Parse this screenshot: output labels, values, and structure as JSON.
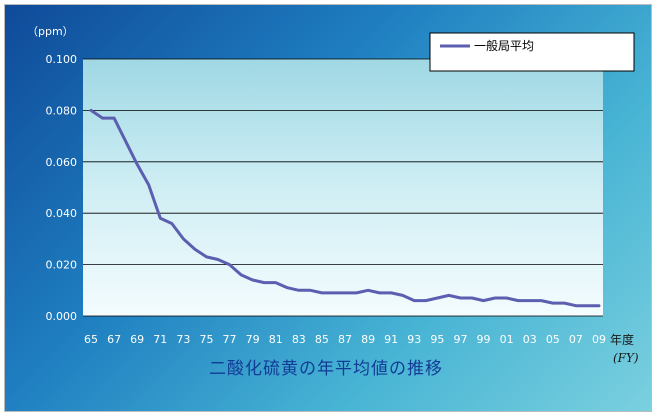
{
  "chart_data": {
    "type": "line",
    "title": "二酸化硫黄の年平均値の推移",
    "y_unit": "（ppm）",
    "x_unit": "年度",
    "x_unit_sub": "(FY)",
    "ylim": [
      0,
      0.1
    ],
    "y_ticks": [
      "0.000",
      "0.020",
      "0.040",
      "0.060",
      "0.080",
      "0.100"
    ],
    "grid": true,
    "legend_position": "top-right",
    "x_tick_labels": [
      "65",
      "67",
      "69",
      "71",
      "73",
      "75",
      "77",
      "79",
      "81",
      "83",
      "85",
      "87",
      "89",
      "91",
      "93",
      "95",
      "97",
      "99",
      "01",
      "03",
      "05",
      "07",
      "09"
    ],
    "x": [
      1965,
      1966,
      1967,
      1968,
      1969,
      1970,
      1971,
      1972,
      1973,
      1974,
      1975,
      1976,
      1977,
      1978,
      1979,
      1980,
      1981,
      1982,
      1983,
      1984,
      1985,
      1986,
      1987,
      1988,
      1989,
      1990,
      1991,
      1992,
      1993,
      1994,
      1995,
      1996,
      1997,
      1998,
      1999,
      2000,
      2001,
      2002,
      2003,
      2004,
      2005,
      2006,
      2007,
      2008,
      2009
    ],
    "series": [
      {
        "name": "一般局平均",
        "color": "#5c5fb0",
        "values": [
          0.08,
          0.077,
          0.077,
          0.068,
          0.059,
          0.051,
          0.038,
          0.036,
          0.03,
          0.026,
          0.023,
          0.022,
          0.02,
          0.016,
          0.014,
          0.013,
          0.013,
          0.011,
          0.01,
          0.01,
          0.009,
          0.009,
          0.009,
          0.009,
          0.01,
          0.009,
          0.009,
          0.008,
          0.006,
          0.006,
          0.007,
          0.008,
          0.007,
          0.007,
          0.006,
          0.007,
          0.007,
          0.006,
          0.006,
          0.006,
          0.005,
          0.005,
          0.004,
          0.004,
          0.004
        ]
      }
    ]
  }
}
